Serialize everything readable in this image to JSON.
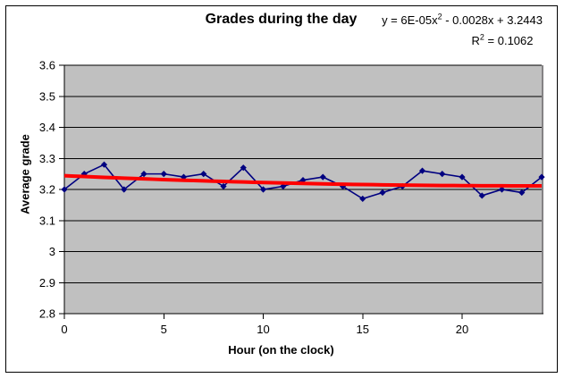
{
  "chart_data": {
    "type": "line",
    "title": "Grades during the day",
    "xlabel": "Hour (on the clock)",
    "ylabel": "Average grade",
    "x": [
      0,
      1,
      2,
      3,
      4,
      5,
      6,
      7,
      8,
      9,
      10,
      11,
      12,
      13,
      14,
      15,
      16,
      17,
      18,
      19,
      20,
      21,
      22,
      23,
      24
    ],
    "values": [
      3.2,
      3.25,
      3.28,
      3.2,
      3.25,
      3.25,
      3.24,
      3.25,
      3.21,
      3.27,
      3.2,
      3.21,
      3.23,
      3.24,
      3.21,
      3.17,
      3.19,
      3.21,
      3.26,
      3.25,
      3.24,
      3.18,
      3.2,
      3.19,
      3.24
    ],
    "xlim": [
      0,
      24
    ],
    "ylim": [
      2.8,
      3.6
    ],
    "x_ticks": [
      0,
      5,
      10,
      15,
      20
    ],
    "x_tick_labels": [
      "0",
      "5",
      "10",
      "15",
      "20"
    ],
    "y_ticks": [
      3.6,
      3.5,
      3.4,
      3.3,
      3.2,
      3.1,
      3.0,
      2.9,
      2.8
    ],
    "y_tick_labels": [
      "3.6",
      "3.5",
      "3.4",
      "3.3",
      "3.2",
      "3.1",
      "3",
      "2.9",
      "2.8"
    ],
    "grid": "horizontal",
    "legend": "none",
    "trendline": {
      "kind": "polynomial-order-2",
      "a": 6e-05,
      "b": -0.0028,
      "c": 3.2443,
      "equation": {
        "prefix": "y = 6E-05x",
        "sup": "2",
        "suffix": " - 0.0028x + 3.2443"
      },
      "r_squared": {
        "prefix": "R",
        "sup": "2",
        "suffix": " = 0.1062"
      }
    },
    "colors": {
      "series": "#000080",
      "trendline": "#FF0000",
      "plot_background": "#C0C0C0",
      "plot_shadow": "#848284",
      "gridline": "#000000",
      "axis": "#000000",
      "text": "#000000",
      "page_background": "#FFFFFF"
    }
  }
}
